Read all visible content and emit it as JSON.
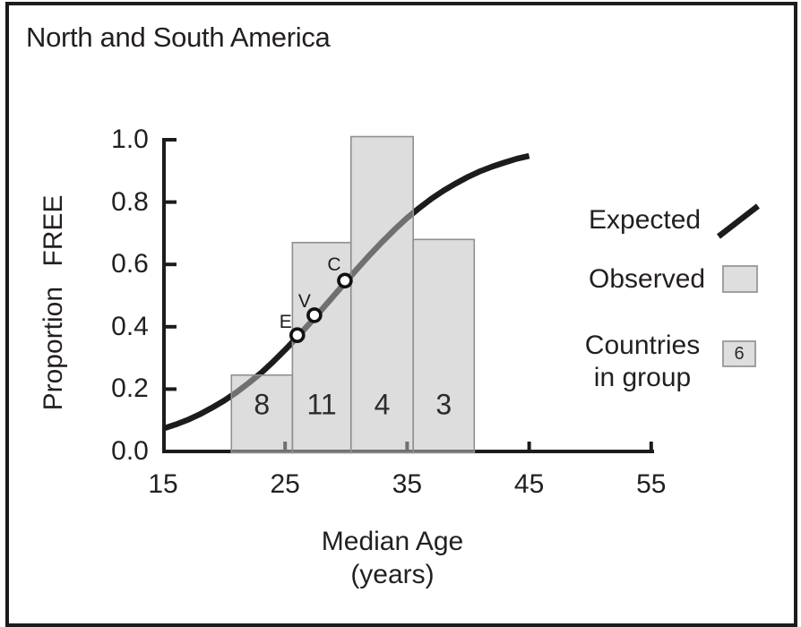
{
  "figure": {
    "region_title": "North and South America"
  },
  "chart_data": {
    "type": "line",
    "title": "North and South America",
    "ylabel": "Proportion FREE",
    "xlabel_lines": [
      "Median Age",
      "(years)"
    ],
    "xlabel": "Median Age (years)",
    "xlim": [
      15,
      55
    ],
    "ylim": [
      0.0,
      1.0
    ],
    "x_tick_labels": [
      "15",
      "25",
      "35",
      "45",
      "55"
    ],
    "x_tick_values": [
      15,
      25,
      35,
      45,
      55
    ],
    "x_ticks_with_marks": [
      25,
      35,
      45,
      55
    ],
    "y_tick_labels": [
      "1.0",
      "0.8",
      "0.6",
      "0.4",
      "0.2",
      "0.0"
    ],
    "y_tick_values": [
      1.0,
      0.8,
      0.6,
      0.4,
      0.2,
      0.0
    ],
    "grid": false,
    "series": [
      {
        "name": "Expected",
        "kind": "logistic-curve"
      },
      {
        "name": "Observed",
        "kind": "histogram-bars"
      }
    ],
    "expected_curve": {
      "x": [
        15,
        16,
        17,
        18,
        19,
        20,
        21,
        22,
        23,
        24,
        25,
        26,
        27,
        28,
        29,
        30,
        31,
        32,
        33,
        34,
        35,
        36,
        37,
        38,
        39,
        40,
        41,
        42,
        43,
        44,
        45
      ],
      "y": [
        0.073,
        0.086,
        0.101,
        0.119,
        0.14,
        0.163,
        0.189,
        0.219,
        0.251,
        0.287,
        0.326,
        0.367,
        0.41,
        0.455,
        0.5,
        0.545,
        0.59,
        0.633,
        0.674,
        0.713,
        0.749,
        0.781,
        0.811,
        0.837,
        0.86,
        0.881,
        0.899,
        0.914,
        0.927,
        0.939,
        0.948
      ]
    },
    "observed_bars": {
      "bin_edges_age": [
        20.6,
        25.6,
        30.4,
        35.5,
        40.5
      ],
      "proportions": [
        0.245,
        0.67,
        1.01,
        0.68
      ],
      "counts": [
        "8",
        "11",
        "4",
        "3"
      ]
    },
    "labeled_points": [
      {
        "label": "E",
        "age": 26.0,
        "proportion": 0.373
      },
      {
        "label": "V",
        "age": 27.4,
        "proportion": 0.437
      },
      {
        "label": "C",
        "age": 29.9,
        "proportion": 0.548
      }
    ],
    "legend": {
      "position": "right",
      "expected": {
        "label": "Expected",
        "swatch": "thick-line"
      },
      "observed": {
        "label": "Observed",
        "swatch": "gray-box"
      },
      "countries": {
        "label": "Countries in group",
        "lines": [
          "Countries",
          "in group"
        ],
        "swatch": "gray-box-with-number",
        "example_count": "6"
      }
    },
    "colors": {
      "curve": "#1c1c1c",
      "curve_under_bar": "#6f6f6f",
      "bar_fill_effective": "#dcdcdc",
      "bar_fill_rgba": "rgba(189,189,189,0.52)",
      "bar_border": "#8f8f8f",
      "axis": "#1c1c1c",
      "text": "#231f20",
      "point_fill": "#ffffff",
      "point_ring": "#111111"
    }
  }
}
